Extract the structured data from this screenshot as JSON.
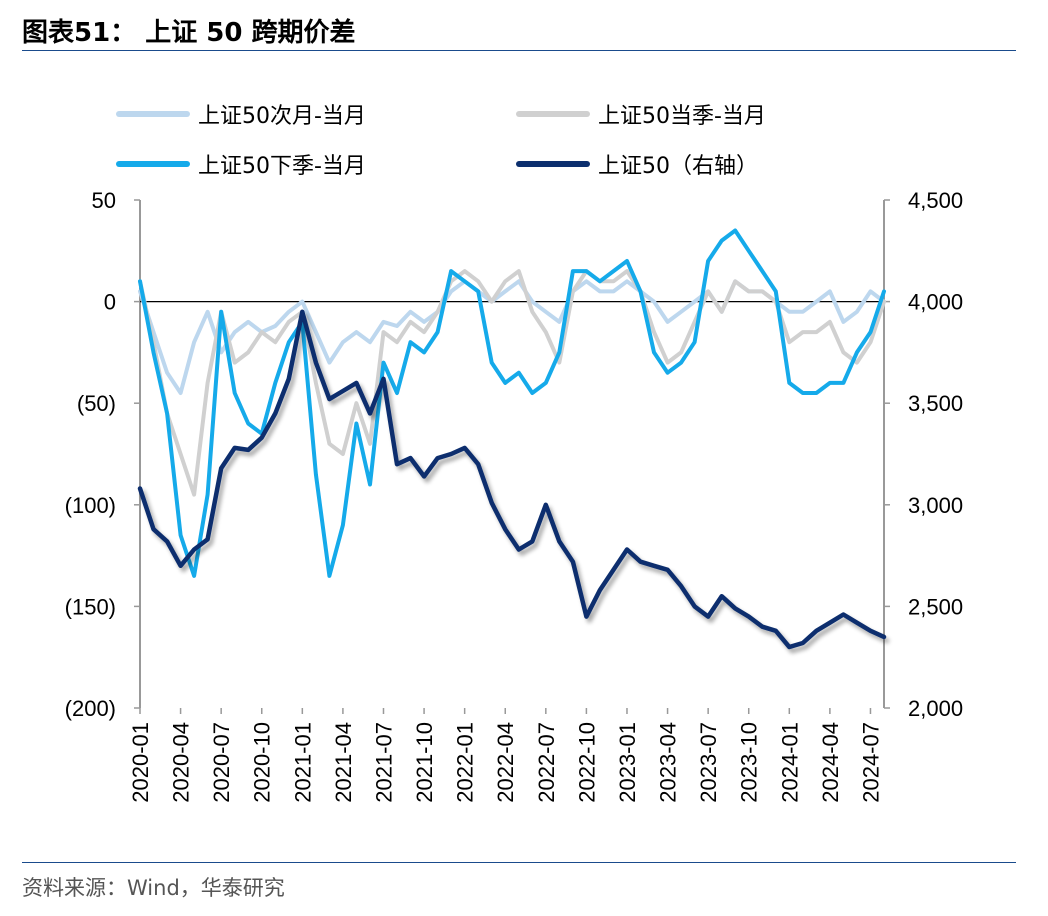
{
  "header": {
    "title": "图表51：  上证 50 跨期价差"
  },
  "footer": {
    "source": "资料来源：Wind，华泰研究"
  },
  "chart_data": {
    "type": "line",
    "title": "",
    "x": [
      "2020-01",
      "2020-02",
      "2020-03",
      "2020-04",
      "2020-05",
      "2020-06",
      "2020-07",
      "2020-08",
      "2020-09",
      "2020-10",
      "2020-11",
      "2020-12",
      "2021-01",
      "2021-02",
      "2021-03",
      "2021-04",
      "2021-05",
      "2021-06",
      "2021-07",
      "2021-08",
      "2021-09",
      "2021-10",
      "2021-11",
      "2021-12",
      "2022-01",
      "2022-02",
      "2022-03",
      "2022-04",
      "2022-05",
      "2022-06",
      "2022-07",
      "2022-08",
      "2022-09",
      "2022-10",
      "2022-11",
      "2022-12",
      "2023-01",
      "2023-02",
      "2023-03",
      "2023-04",
      "2023-05",
      "2023-06",
      "2023-07",
      "2023-08",
      "2023-09",
      "2023-10",
      "2023-11",
      "2023-12",
      "2024-01",
      "2024-02",
      "2024-03",
      "2024-04",
      "2024-05",
      "2024-06",
      "2024-07",
      "2024-08"
    ],
    "x_tick_labels": [
      "2020-01",
      "2020-04",
      "2020-07",
      "2020-10",
      "2021-01",
      "2021-04",
      "2021-07",
      "2021-10",
      "2022-01",
      "2022-04",
      "2022-07",
      "2022-10",
      "2023-01",
      "2023-04",
      "2023-07",
      "2023-10",
      "2024-01",
      "2024-04",
      "2024-07"
    ],
    "y_left": {
      "range": [
        -200,
        50
      ],
      "ticks": [
        50,
        0,
        -50,
        -100,
        -150,
        -200
      ],
      "tick_labels": [
        "50",
        "0",
        "(50)",
        "(100)",
        "(150)",
        "(200)"
      ]
    },
    "y_right": {
      "range": [
        2000,
        4500
      ],
      "ticks": [
        4500,
        4000,
        3500,
        3000,
        2500,
        2000
      ],
      "tick_labels": [
        "4,500",
        "4,000",
        "3,500",
        "3,000",
        "2,500",
        "2,000"
      ]
    },
    "series": [
      {
        "name": "上证50次月-当月",
        "axis": "left",
        "color": "#bdd7ee",
        "values": [
          5,
          -15,
          -35,
          -45,
          -20,
          -5,
          -25,
          -15,
          -10,
          -15,
          -12,
          -5,
          0,
          -15,
          -30,
          -20,
          -15,
          -20,
          -10,
          -12,
          -5,
          -10,
          -5,
          5,
          10,
          5,
          0,
          5,
          10,
          0,
          -5,
          -10,
          5,
          10,
          5,
          5,
          10,
          5,
          0,
          -10,
          -5,
          0,
          5,
          -5,
          10,
          5,
          5,
          0,
          -5,
          -5,
          0,
          5,
          -10,
          -5,
          5,
          0
        ]
      },
      {
        "name": "上证50当季-当月",
        "axis": "left",
        "color": "#d0d0d0",
        "values": [
          10,
          -20,
          -55,
          -75,
          -95,
          -40,
          -5,
          -30,
          -25,
          -15,
          -20,
          -10,
          -5,
          -40,
          -70,
          -75,
          -50,
          -70,
          -15,
          -20,
          -10,
          -15,
          -5,
          10,
          15,
          10,
          0,
          10,
          15,
          -5,
          -15,
          -30,
          5,
          15,
          10,
          10,
          15,
          5,
          -15,
          -30,
          -25,
          -10,
          5,
          -5,
          10,
          5,
          5,
          0,
          -20,
          -15,
          -15,
          -10,
          -25,
          -30,
          -20,
          0
        ]
      },
      {
        "name": "上证50下季-当月",
        "axis": "left",
        "color": "#15aaea",
        "values": [
          10,
          -25,
          -55,
          -115,
          -135,
          -95,
          -5,
          -45,
          -60,
          -65,
          -40,
          -20,
          -10,
          -85,
          -135,
          -110,
          -60,
          -90,
          -30,
          -45,
          -20,
          -25,
          -15,
          15,
          10,
          5,
          -30,
          -40,
          -35,
          -45,
          -40,
          -25,
          15,
          15,
          10,
          15,
          20,
          5,
          -25,
          -35,
          -30,
          -20,
          20,
          30,
          35,
          25,
          15,
          5,
          -40,
          -45,
          -45,
          -40,
          -40,
          -25,
          -15,
          5
        ]
      },
      {
        "name": "上证50（右轴）",
        "axis": "right",
        "color": "#0c2f6e",
        "values": [
          3080,
          2880,
          2820,
          2700,
          2780,
          2830,
          3180,
          3280,
          3270,
          3330,
          3450,
          3620,
          3950,
          3700,
          3520,
          3560,
          3600,
          3450,
          3620,
          3200,
          3230,
          3140,
          3230,
          3250,
          3280,
          3200,
          3010,
          2880,
          2780,
          2820,
          3000,
          2820,
          2720,
          2450,
          2580,
          2680,
          2780,
          2720,
          2700,
          2680,
          2600,
          2500,
          2450,
          2550,
          2490,
          2450,
          2400,
          2380,
          2300,
          2320,
          2380,
          2420,
          2460,
          2420,
          2380,
          2350
        ]
      }
    ]
  }
}
